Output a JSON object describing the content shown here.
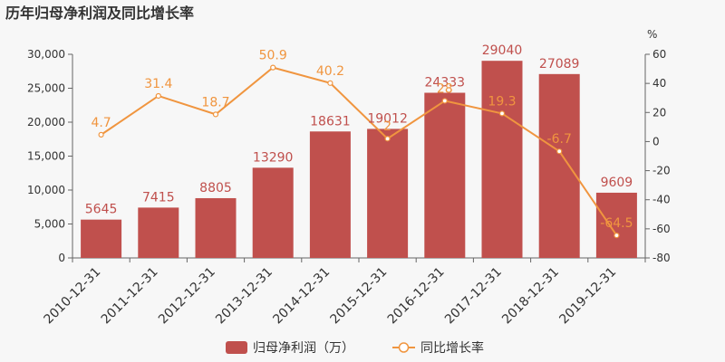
{
  "colors": {
    "bar": "#c0504d",
    "line": "#f0953f",
    "axis": "#666666",
    "text": "#333333",
    "background": "#f7f7f7"
  },
  "chart_data": {
    "type": "bar",
    "title": "历年归母净利润及同比增长率",
    "categories": [
      "2010-12-31",
      "2011-12-31",
      "2012-12-31",
      "2013-12-31",
      "2014-12-31",
      "2015-12-31",
      "2016-12-31",
      "2017-12-31",
      "2018-12-31",
      "2019-12-31"
    ],
    "series": [
      {
        "name": "归母净利润（万）",
        "type": "bar",
        "axis": "left",
        "values": [
          5645,
          7415,
          8805,
          13290,
          18631,
          19012,
          24333,
          29040,
          27089,
          9609
        ],
        "labels": [
          "5645",
          "7415",
          "8805",
          "13290",
          "18631",
          "19012",
          "24333",
          "29040",
          "27089",
          "9609"
        ]
      },
      {
        "name": "同比增长率",
        "type": "line",
        "axis": "right",
        "values": [
          4.7,
          31.4,
          18.7,
          50.9,
          40.2,
          2.0,
          28.0,
          19.3,
          -6.7,
          -64.5
        ],
        "labels": [
          "4.7",
          "31.4",
          "18.7",
          "50.9",
          "40.2",
          "2",
          "28",
          "19.3",
          "-6.7",
          "-64.5"
        ]
      }
    ],
    "y_left": {
      "range": [
        0,
        30000
      ],
      "ticks": [
        "0",
        "5,000",
        "10,000",
        "15,000",
        "20,000",
        "25,000",
        "30,000"
      ]
    },
    "y_right": {
      "range": [
        -80,
        60
      ],
      "ticks": [
        "-80",
        "-60",
        "-40",
        "-20",
        "0",
        "20",
        "40",
        "60"
      ],
      "unit": "%"
    },
    "grid": false,
    "legend_position": "bottom"
  }
}
